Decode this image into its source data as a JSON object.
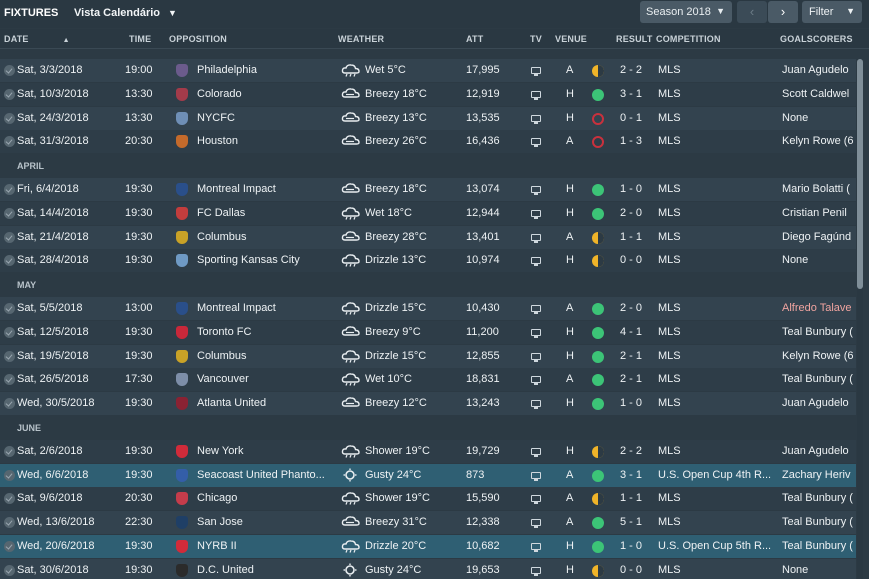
{
  "header": {
    "title": "FIXTURES",
    "view": "Vista Calendário",
    "season": "Season 2018",
    "filter": "Filter",
    "prev_icon": "chevron-left-icon",
    "next_icon": "chevron-right-icon"
  },
  "columns": {
    "date": "DATE",
    "time": "TIME",
    "opposition": "OPPOSITION",
    "weather": "WEATHER",
    "att": "ATT",
    "tv": "TV",
    "venue": "VENUE",
    "result": "RESULT",
    "competition": "COMPETITION",
    "goalscorers": "GOALSCORERS"
  },
  "sections": {
    "april": "APRIL",
    "may": "MAY",
    "june": "JUNE"
  },
  "colors": {
    "win": "#3cc477",
    "draw": "#f0b429",
    "loss": "#c9313d",
    "highlight_row": "#2f5f73"
  },
  "fixtures": [
    {
      "date": "Sat, 3/3/2018",
      "time": "19:00",
      "opp": "Philadelphia",
      "weather": "Wet 5°C",
      "att": "17,995",
      "venue": "A",
      "outcome": "draw",
      "score": "2 - 2",
      "comp": "MLS",
      "scorer": "Juan Agudelo"
    },
    {
      "date": "Sat, 10/3/2018",
      "time": "13:30",
      "opp": "Colorado",
      "weather": "Breezy 18°C",
      "att": "12,919",
      "venue": "H",
      "outcome": "win",
      "score": "3 - 1",
      "comp": "MLS",
      "scorer": "Scott Caldwel"
    },
    {
      "date": "Sat, 24/3/2018",
      "time": "13:30",
      "opp": "NYCFC",
      "weather": "Breezy 13°C",
      "att": "13,535",
      "venue": "H",
      "outcome": "loss",
      "score": "0 - 1",
      "comp": "MLS",
      "scorer": "None"
    },
    {
      "date": "Sat, 31/3/2018",
      "time": "20:30",
      "opp": "Houston",
      "weather": "Breezy 26°C",
      "att": "16,436",
      "venue": "A",
      "outcome": "loss",
      "score": "1 - 3",
      "comp": "MLS",
      "scorer": "Kelyn Rowe (6"
    },
    {
      "date": "Fri, 6/4/2018",
      "time": "19:30",
      "opp": "Montreal Impact",
      "weather": "Breezy 18°C",
      "att": "13,074",
      "venue": "H",
      "outcome": "win",
      "score": "1 - 0",
      "comp": "MLS",
      "scorer": "Mario Bolatti ("
    },
    {
      "date": "Sat, 14/4/2018",
      "time": "19:30",
      "opp": "FC Dallas",
      "weather": "Wet 18°C",
      "att": "12,944",
      "venue": "H",
      "outcome": "win",
      "score": "2 - 0",
      "comp": "MLS",
      "scorer": "Cristian Penil"
    },
    {
      "date": "Sat, 21/4/2018",
      "time": "19:30",
      "opp": "Columbus",
      "weather": "Breezy 28°C",
      "att": "13,401",
      "venue": "A",
      "outcome": "draw",
      "score": "1 - 1",
      "comp": "MLS",
      "scorer": "Diego Fagúnd"
    },
    {
      "date": "Sat, 28/4/2018",
      "time": "19:30",
      "opp": "Sporting Kansas City",
      "weather": "Drizzle 13°C",
      "att": "10,974",
      "venue": "H",
      "outcome": "draw",
      "score": "0 - 0",
      "comp": "MLS",
      "scorer": "None"
    },
    {
      "date": "Sat, 5/5/2018",
      "time": "13:00",
      "opp": "Montreal Impact",
      "weather": "Drizzle 15°C",
      "att": "10,430",
      "venue": "A",
      "outcome": "win",
      "score": "2 - 0",
      "comp": "MLS",
      "scorer": "Alfredo Talave"
    },
    {
      "date": "Sat, 12/5/2018",
      "time": "19:30",
      "opp": "Toronto FC",
      "weather": "Breezy 9°C",
      "att": "11,200",
      "venue": "H",
      "outcome": "win",
      "score": "4 - 1",
      "comp": "MLS",
      "scorer": "Teal Bunbury ("
    },
    {
      "date": "Sat, 19/5/2018",
      "time": "19:30",
      "opp": "Columbus",
      "weather": "Drizzle 15°C",
      "att": "12,855",
      "venue": "H",
      "outcome": "win",
      "score": "2 - 1",
      "comp": "MLS",
      "scorer": "Kelyn Rowe (6"
    },
    {
      "date": "Sat, 26/5/2018",
      "time": "17:30",
      "opp": "Vancouver",
      "weather": "Wet 10°C",
      "att": "18,831",
      "venue": "A",
      "outcome": "win",
      "score": "2 - 1",
      "comp": "MLS",
      "scorer": "Teal Bunbury ("
    },
    {
      "date": "Wed, 30/5/2018",
      "time": "19:30",
      "opp": "Atlanta United",
      "weather": "Breezy 12°C",
      "att": "13,243",
      "venue": "H",
      "outcome": "win",
      "score": "1 - 0",
      "comp": "MLS",
      "scorer": "Juan Agudelo"
    },
    {
      "date": "Sat, 2/6/2018",
      "time": "19:30",
      "opp": "New York",
      "weather": "Shower 19°C",
      "att": "19,729",
      "venue": "H",
      "outcome": "draw",
      "score": "2 - 2",
      "comp": "MLS",
      "scorer": "Juan Agudelo"
    },
    {
      "date": "Wed, 6/6/2018",
      "time": "19:30",
      "opp": "Seacoast United Phanto...",
      "weather": "Gusty 24°C",
      "att": "873",
      "venue": "A",
      "outcome": "win",
      "score": "3 - 1",
      "comp": "U.S. Open Cup 4th R...",
      "scorer": "Zachary Heriv"
    },
    {
      "date": "Sat, 9/6/2018",
      "time": "20:30",
      "opp": "Chicago",
      "weather": "Shower 19°C",
      "att": "15,590",
      "venue": "A",
      "outcome": "draw",
      "score": "1 - 1",
      "comp": "MLS",
      "scorer": "Teal Bunbury ("
    },
    {
      "date": "Wed, 13/6/2018",
      "time": "22:30",
      "opp": "San Jose",
      "weather": "Breezy 31°C",
      "att": "12,338",
      "venue": "A",
      "outcome": "win",
      "score": "5 - 1",
      "comp": "MLS",
      "scorer": "Teal Bunbury ("
    },
    {
      "date": "Wed, 20/6/2018",
      "time": "19:30",
      "opp": "NYRB II",
      "weather": "Drizzle 20°C",
      "att": "10,682",
      "venue": "H",
      "outcome": "win",
      "score": "1 - 0",
      "comp": "U.S. Open Cup 5th R...",
      "scorer": "Teal Bunbury ("
    },
    {
      "date": "Sat, 30/6/2018",
      "time": "19:30",
      "opp": "D.C. United",
      "weather": "Gusty 24°C",
      "att": "19,653",
      "venue": "H",
      "outcome": "draw",
      "score": "0 - 0",
      "comp": "MLS",
      "scorer": "None"
    }
  ]
}
